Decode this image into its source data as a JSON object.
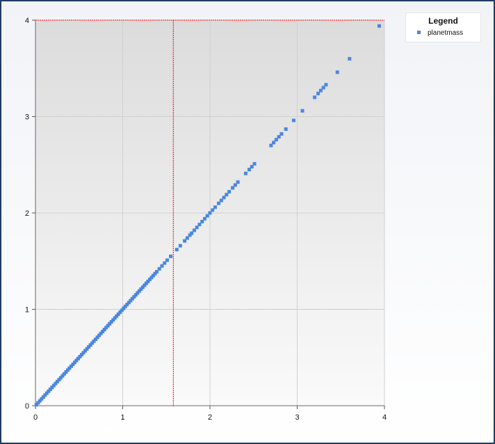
{
  "colors": {
    "series": "#4a86e0",
    "marker_line": "#ff0000",
    "grid": "#d0d0d0",
    "plot_top": "#dcdcdc",
    "plot_bottom": "#fafafa",
    "frame": "#1f3b63"
  },
  "legend": {
    "title": "Legend",
    "placement": "top-right"
  },
  "chart_data": {
    "type": "scatter",
    "title": "",
    "xlabel": "",
    "ylabel": "",
    "xlim": [
      0,
      4
    ],
    "ylim": [
      0,
      4
    ],
    "xticks": [
      "0",
      "1",
      "2",
      "3",
      "4"
    ],
    "yticks": [
      "0",
      "1",
      "2",
      "3",
      "4"
    ],
    "grid": true,
    "crosshair": {
      "x": 1.58,
      "y": 4.0
    },
    "series": [
      {
        "name": "planetmass",
        "x": [
          0.01,
          0.03,
          0.05,
          0.07,
          0.09,
          0.11,
          0.13,
          0.15,
          0.17,
          0.19,
          0.21,
          0.23,
          0.25,
          0.27,
          0.29,
          0.31,
          0.33,
          0.35,
          0.37,
          0.39,
          0.41,
          0.43,
          0.45,
          0.47,
          0.49,
          0.51,
          0.53,
          0.55,
          0.57,
          0.59,
          0.61,
          0.63,
          0.65,
          0.67,
          0.69,
          0.71,
          0.73,
          0.75,
          0.77,
          0.79,
          0.81,
          0.83,
          0.85,
          0.87,
          0.89,
          0.91,
          0.93,
          0.95,
          0.97,
          0.99,
          1.01,
          1.03,
          1.05,
          1.07,
          1.09,
          1.11,
          1.13,
          1.15,
          1.17,
          1.19,
          1.21,
          1.23,
          1.25,
          1.27,
          1.29,
          1.31,
          1.33,
          1.35,
          1.37,
          1.39,
          1.42,
          1.45,
          1.48,
          1.51,
          1.55,
          1.62,
          1.66,
          1.71,
          1.74,
          1.77,
          1.79,
          1.82,
          1.85,
          1.88,
          1.91,
          1.94,
          1.97,
          2.0,
          2.03,
          2.06,
          2.1,
          2.13,
          2.16,
          2.19,
          2.22,
          2.26,
          2.29,
          2.32,
          2.41,
          2.45,
          2.48,
          2.51,
          2.7,
          2.73,
          2.76,
          2.79,
          2.82,
          2.87,
          2.96,
          3.06,
          3.2,
          3.24,
          3.27,
          3.3,
          3.33,
          3.46,
          3.6,
          3.94
        ],
        "y": [
          0.01,
          0.03,
          0.05,
          0.07,
          0.09,
          0.11,
          0.13,
          0.15,
          0.17,
          0.19,
          0.21,
          0.23,
          0.25,
          0.27,
          0.29,
          0.31,
          0.33,
          0.35,
          0.37,
          0.39,
          0.41,
          0.43,
          0.45,
          0.47,
          0.49,
          0.51,
          0.53,
          0.55,
          0.57,
          0.59,
          0.61,
          0.63,
          0.65,
          0.67,
          0.69,
          0.71,
          0.73,
          0.75,
          0.77,
          0.79,
          0.81,
          0.83,
          0.85,
          0.87,
          0.89,
          0.91,
          0.93,
          0.95,
          0.97,
          0.99,
          1.01,
          1.03,
          1.05,
          1.07,
          1.09,
          1.11,
          1.13,
          1.15,
          1.17,
          1.19,
          1.21,
          1.23,
          1.25,
          1.27,
          1.29,
          1.31,
          1.33,
          1.35,
          1.37,
          1.39,
          1.42,
          1.45,
          1.48,
          1.51,
          1.55,
          1.62,
          1.66,
          1.71,
          1.74,
          1.77,
          1.79,
          1.82,
          1.85,
          1.88,
          1.91,
          1.94,
          1.97,
          2.0,
          2.03,
          2.06,
          2.1,
          2.13,
          2.16,
          2.19,
          2.22,
          2.26,
          2.29,
          2.32,
          2.41,
          2.45,
          2.48,
          2.51,
          2.7,
          2.73,
          2.76,
          2.79,
          2.82,
          2.87,
          2.96,
          3.06,
          3.2,
          3.24,
          3.27,
          3.3,
          3.33,
          3.46,
          3.6,
          3.94
        ]
      }
    ]
  }
}
